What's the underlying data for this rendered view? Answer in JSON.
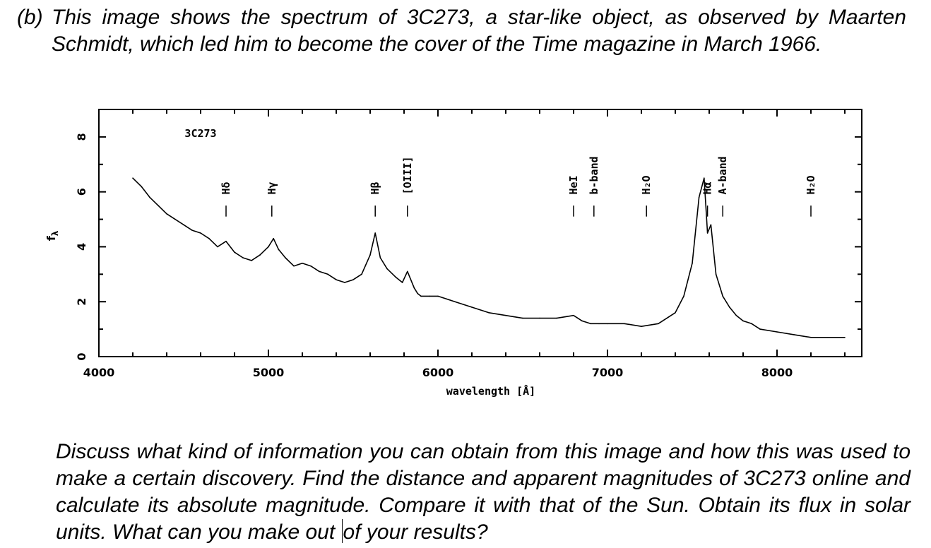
{
  "question": {
    "label": "(b)",
    "intro": "This image shows the spectrum of 3C273, a star-like object, as observed by Maarten Schmidt, which led him to become the cover of the Time magazine in March 1966.",
    "body_before_cursor": "Discuss what kind of information you can obtain from this image and how this was used to make a certain discovery. Find the distance and apparent magnitudes of 3C273 online and calculate its absolute magnitude. Compare it with that of the Sun. Obtain its flux in solar units. What can you make out",
    "body_after_cursor": "of your results?"
  },
  "chart_data": {
    "type": "line",
    "title": "3C273",
    "xlabel": "wavelength [Å]",
    "ylabel": "f",
    "ylabel_sub": "λ",
    "xlim": [
      4000,
      8500
    ],
    "ylim": [
      0,
      9
    ],
    "xticks": [
      4000,
      5000,
      6000,
      7000,
      8000
    ],
    "yticks": [
      0,
      2,
      4,
      6,
      8
    ],
    "grid": false,
    "series": [
      {
        "x": [
          4200,
          4250,
          4300,
          4350,
          4400,
          4450,
          4500,
          4550,
          4600,
          4650,
          4700,
          4750,
          4800,
          4850,
          4900,
          4950,
          5000,
          5030,
          5060,
          5100,
          5150,
          5200,
          5250,
          5300,
          5350,
          5400,
          5450,
          5500,
          5550,
          5600,
          5630,
          5660,
          5700,
          5750,
          5790,
          5820,
          5860,
          5880,
          5900,
          5950,
          6000,
          6050,
          6100,
          6200,
          6300,
          6400,
          6500,
          6600,
          6700,
          6800,
          6850,
          6900,
          6950,
          7000,
          7100,
          7200,
          7300,
          7400,
          7450,
          7500,
          7540,
          7570,
          7590,
          7610,
          7640,
          7680,
          7720,
          7760,
          7800,
          7850,
          7900,
          8000,
          8100,
          8200,
          8300,
          8400
        ],
        "y": [
          6.5,
          6.2,
          5.8,
          5.5,
          5.2,
          5.0,
          4.8,
          4.6,
          4.5,
          4.3,
          4.0,
          4.2,
          3.8,
          3.6,
          3.5,
          3.7,
          4.0,
          4.3,
          3.9,
          3.6,
          3.3,
          3.4,
          3.3,
          3.1,
          3.0,
          2.8,
          2.7,
          2.8,
          3.0,
          3.7,
          4.5,
          3.6,
          3.2,
          2.9,
          2.7,
          3.1,
          2.5,
          2.3,
          2.2,
          2.2,
          2.2,
          2.1,
          2.0,
          1.8,
          1.6,
          1.5,
          1.4,
          1.4,
          1.4,
          1.5,
          1.3,
          1.2,
          1.2,
          1.2,
          1.2,
          1.1,
          1.2,
          1.6,
          2.2,
          3.4,
          5.8,
          6.5,
          4.5,
          4.8,
          3.0,
          2.2,
          1.8,
          1.5,
          1.3,
          1.2,
          1.0,
          0.9,
          0.8,
          0.7,
          0.7,
          0.7
        ]
      }
    ],
    "annotations": [
      {
        "text": "Hδ",
        "x": 4750
      },
      {
        "text": "Hγ",
        "x": 5020
      },
      {
        "text": "Hβ",
        "x": 5630
      },
      {
        "text": "[OIII]",
        "x": 5820
      },
      {
        "text": "HeI",
        "x": 6800
      },
      {
        "text": "b-band",
        "x": 6920
      },
      {
        "text": "H₂O",
        "x": 7230
      },
      {
        "text": "Hα",
        "x": 7590
      },
      {
        "text": "A-band",
        "x": 7680
      },
      {
        "text": "H₂O",
        "x": 8200
      }
    ]
  }
}
